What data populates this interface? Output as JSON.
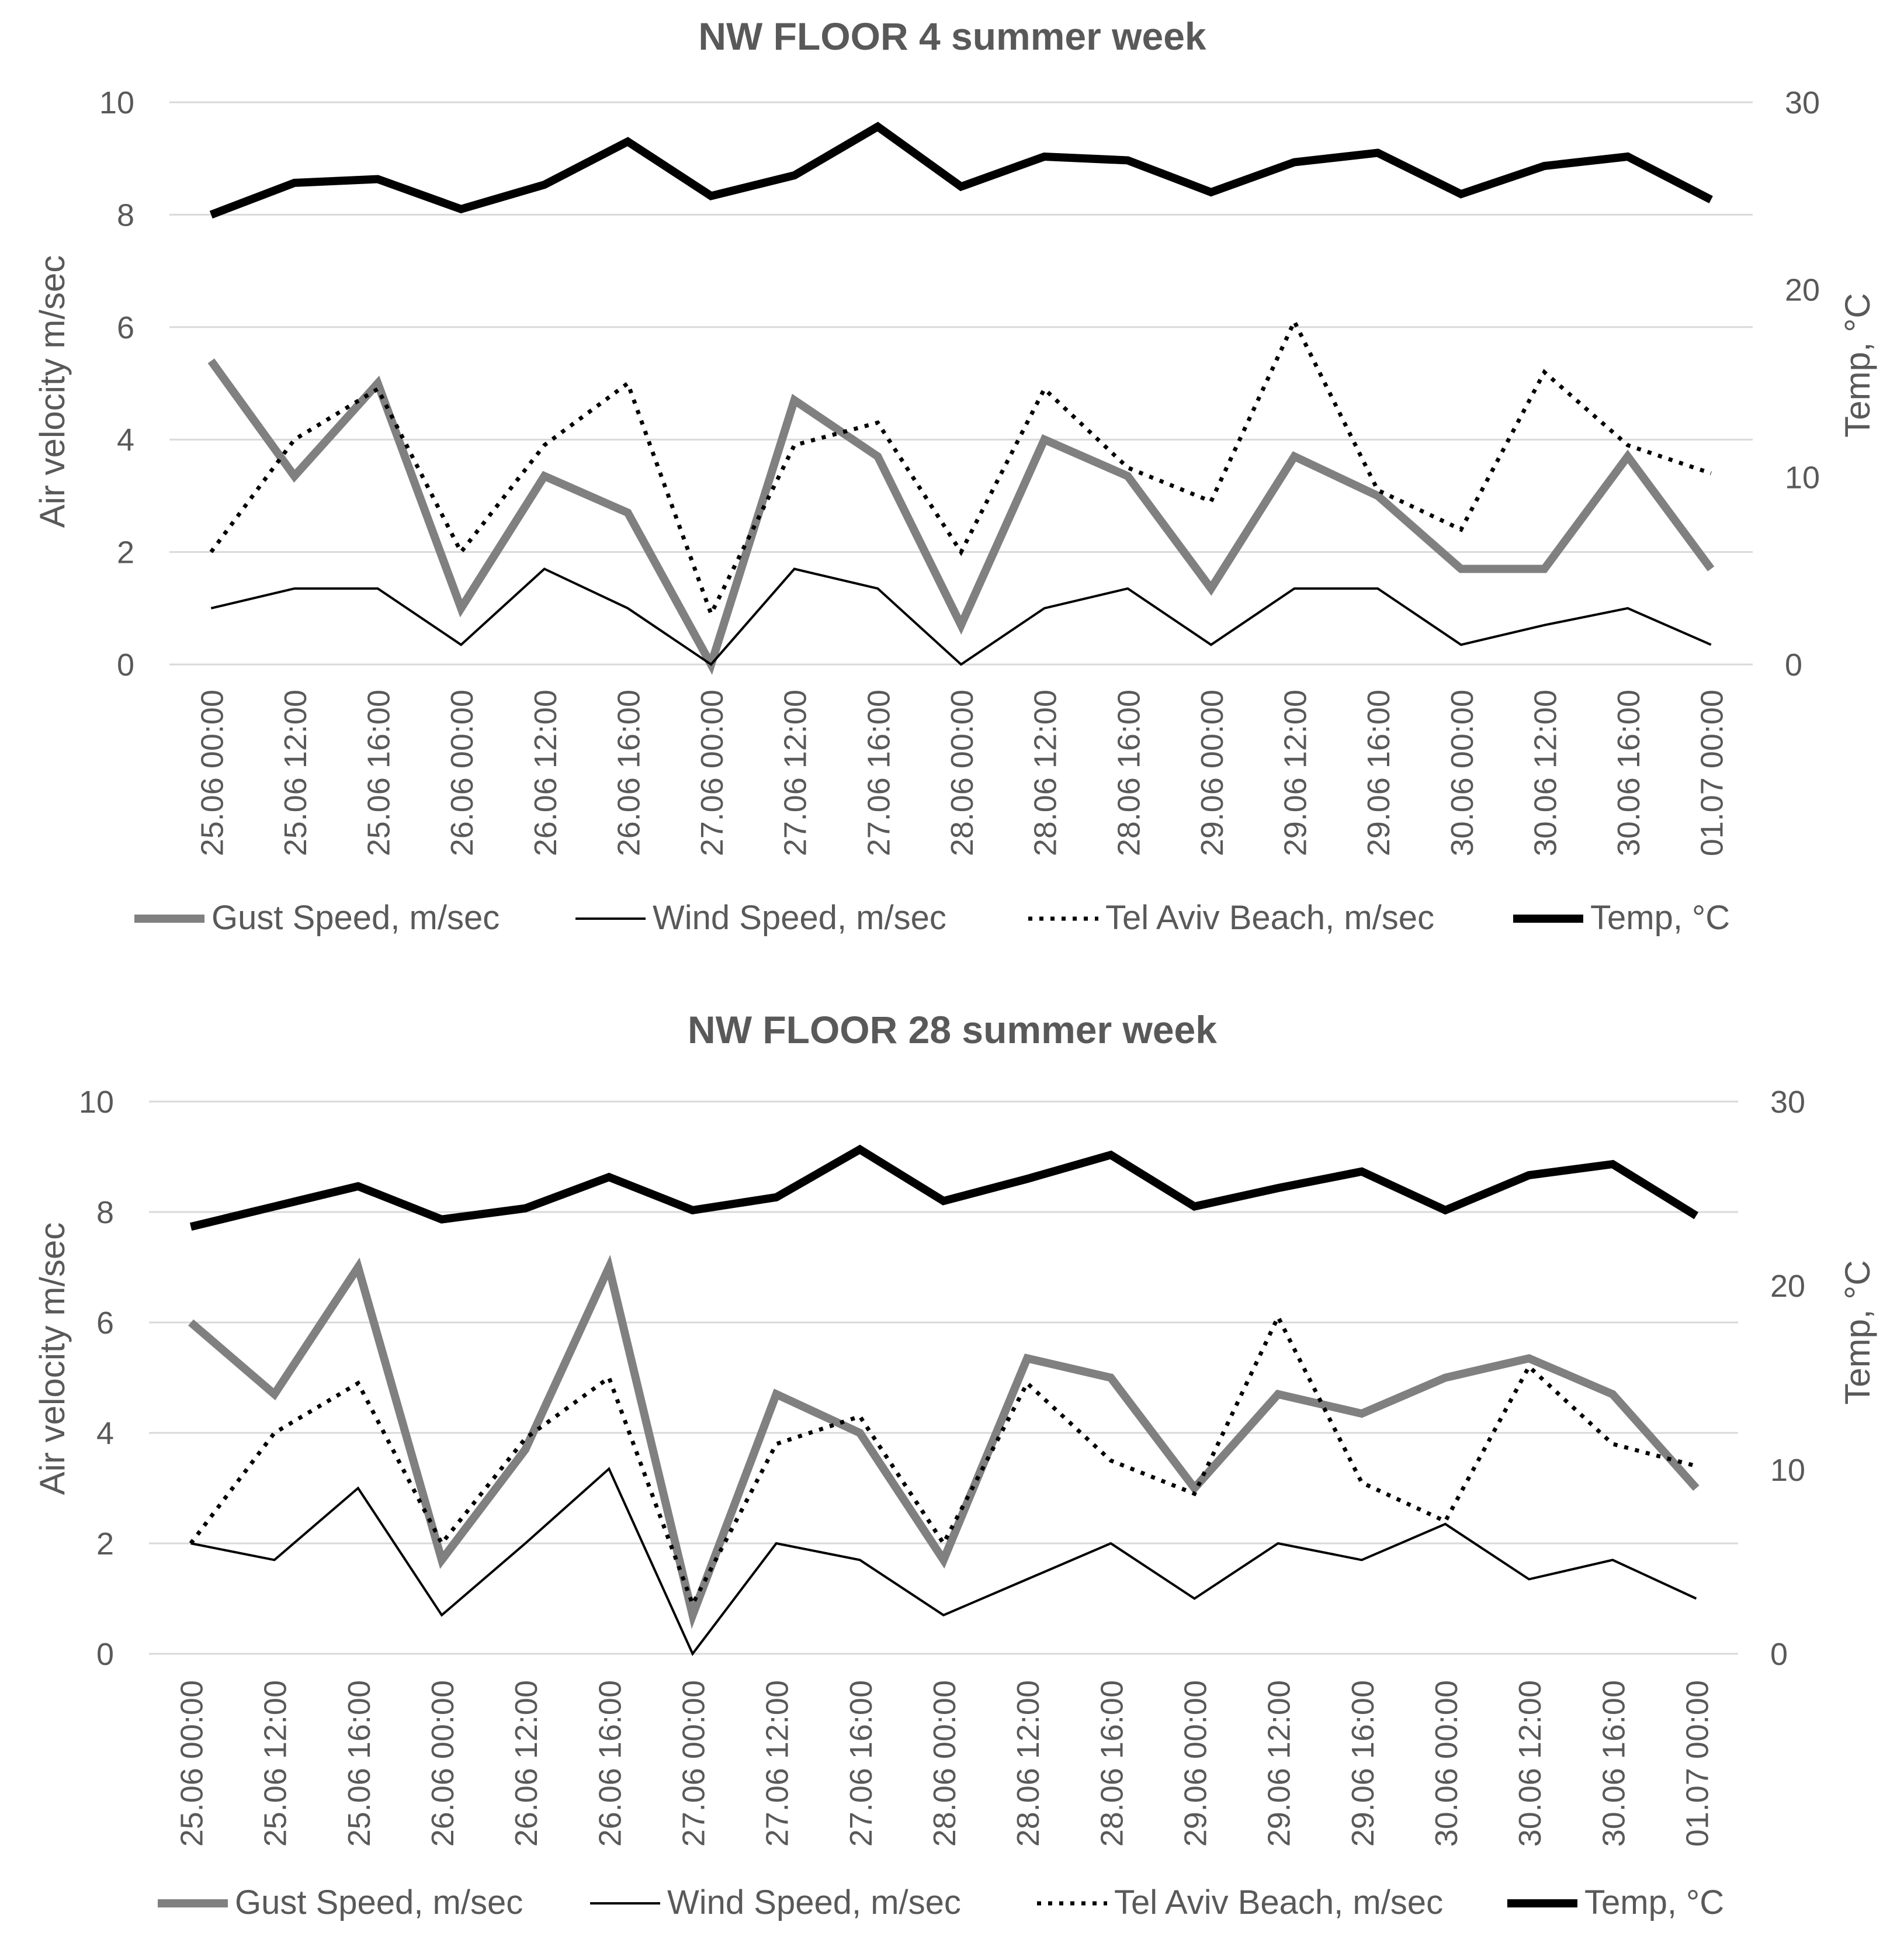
{
  "chart_data": [
    {
      "type": "line",
      "title": "NW FLOOR 4 summer week",
      "ylabel": "Air velocity m/sec",
      "y2label": "Temp, °C",
      "ylim": [
        0,
        10
      ],
      "y2lim": [
        0,
        30
      ],
      "yticks": [
        "0",
        "2",
        "4",
        "6",
        "8",
        "10"
      ],
      "y2ticks": [
        "0",
        "10",
        "20",
        "30"
      ],
      "grid": true,
      "legend": "bottom",
      "categories": [
        "25.06 00:00",
        "25.06 12:00",
        "25.06 16:00",
        "26.06 00:00",
        "26.06 12:00",
        "26.06 16:00",
        "27.06 00:00",
        "27.06 12:00",
        "27.06 16:00",
        "28.06 00:00",
        "28.06 12:00",
        "28.06 16:00",
        "29.06 00:00",
        "29.06 12:00",
        "29.06 16:00",
        "30.06 00:00",
        "30.06 12:00",
        "30.06 16:00",
        "01.07 00:00"
      ],
      "series": [
        {
          "name": "Gust Speed, m/sec",
          "axis": "left",
          "color": "#808080",
          "style": "thick",
          "values": [
            5.4,
            3.35,
            5.0,
            1.0,
            3.35,
            2.7,
            0.0,
            4.7,
            3.7,
            0.7,
            4.0,
            3.35,
            1.35,
            3.7,
            3.0,
            1.7,
            1.7,
            3.7,
            1.7
          ]
        },
        {
          "name": "Wind Speed, m/sec",
          "axis": "left",
          "color": "#000000",
          "style": "thin",
          "values": [
            1.0,
            1.35,
            1.35,
            0.35,
            1.7,
            1.0,
            0.0,
            1.7,
            1.35,
            0.0,
            1.0,
            1.35,
            0.35,
            1.35,
            1.35,
            0.35,
            0.7,
            1.0,
            0.35
          ]
        },
        {
          "name": "Tel Aviv Beach, m/sec",
          "axis": "left",
          "color": "#000000",
          "style": "dotted",
          "values": [
            2.0,
            4.0,
            4.9,
            2.0,
            3.9,
            5.0,
            0.9,
            3.9,
            4.3,
            2.0,
            4.9,
            3.5,
            2.9,
            6.1,
            3.1,
            2.4,
            5.2,
            3.9,
            3.4
          ]
        },
        {
          "name": "Temp, °C",
          "axis": "right",
          "color": "#000000",
          "style": "bold",
          "values": [
            24.0,
            25.7,
            25.9,
            24.3,
            25.6,
            27.9,
            25.0,
            26.1,
            28.7,
            25.5,
            27.1,
            26.9,
            25.2,
            26.8,
            27.3,
            25.1,
            26.6,
            27.1,
            24.8
          ]
        }
      ]
    },
    {
      "type": "line",
      "title": "NW FLOOR 28 summer week",
      "ylabel": "Air velocity m/sec",
      "y2label": "Temp, °C",
      "ylim": [
        0,
        10
      ],
      "y2lim": [
        0,
        30
      ],
      "yticks": [
        "0",
        "2",
        "4",
        "6",
        "8",
        "10"
      ],
      "y2ticks": [
        "0",
        "10",
        "20",
        "30"
      ],
      "grid": true,
      "legend": "bottom",
      "categories": [
        "25.06 00:00",
        "25.06 12:00",
        "25.06 16:00",
        "26.06 00:00",
        "26.06 12:00",
        "26.06 16:00",
        "27.06 00:00",
        "27.06 12:00",
        "27.06 16:00",
        "28.06 00:00",
        "28.06 12:00",
        "28.06 16:00",
        "29.06 00:00",
        "29.06 12:00",
        "29.06 16:00",
        "30.06 00:00",
        "30.06 12:00",
        "30.06 16:00",
        "01.07 00:00"
      ],
      "series": [
        {
          "name": "Gust Speed, m/sec",
          "axis": "left",
          "color": "#808080",
          "style": "thick",
          "values": [
            6.0,
            4.7,
            7.0,
            1.7,
            3.7,
            7.0,
            0.7,
            4.7,
            4.0,
            1.7,
            5.35,
            5.0,
            3.0,
            4.7,
            4.35,
            5.0,
            5.35,
            4.7,
            3.0
          ]
        },
        {
          "name": "Wind Speed, m/sec",
          "axis": "left",
          "color": "#000000",
          "style": "thin",
          "values": [
            2.0,
            1.7,
            3.0,
            0.7,
            2.0,
            3.35,
            0.0,
            2.0,
            1.7,
            0.7,
            1.35,
            2.0,
            1.0,
            2.0,
            1.7,
            2.35,
            1.35,
            1.7,
            1.0
          ]
        },
        {
          "name": "Tel Aviv Beach, m/sec",
          "axis": "left",
          "color": "#000000",
          "style": "dotted",
          "values": [
            2.0,
            4.0,
            4.9,
            2.0,
            3.9,
            5.0,
            0.9,
            3.8,
            4.3,
            2.0,
            4.9,
            3.5,
            2.9,
            6.1,
            3.1,
            2.4,
            5.2,
            3.8,
            3.4
          ]
        },
        {
          "name": "Temp, °C",
          "axis": "right",
          "color": "#000000",
          "style": "bold",
          "values": [
            23.2,
            24.3,
            25.4,
            23.6,
            24.2,
            25.9,
            24.1,
            24.8,
            27.4,
            24.6,
            25.8,
            27.1,
            24.3,
            25.3,
            26.2,
            24.1,
            26.0,
            26.6,
            23.8
          ]
        }
      ]
    }
  ]
}
